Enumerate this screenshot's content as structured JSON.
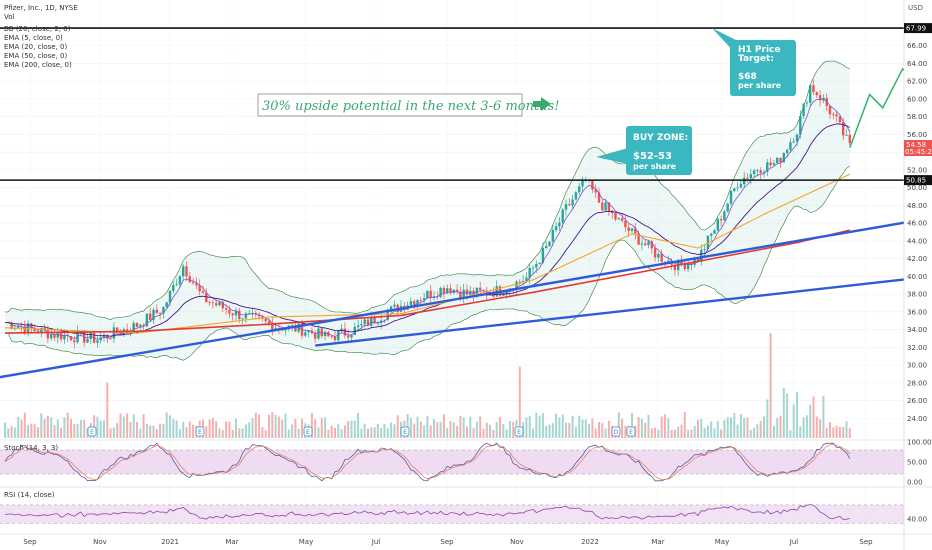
{
  "header": {
    "symbol": "Pfizer, Inc., 1D, NYSE",
    "volume": "Vol",
    "currency": "USD"
  },
  "indicators": [
    "BB (20, close, 2, 0)",
    "EMA (5, close, 0)",
    "EMA (20, close, 0)",
    "EMA (50, close, 0)",
    "EMA (200, close, 0)"
  ],
  "annotations": {
    "headline": "30% upside potential in the next 3-6 months!",
    "target_title_1": "H1 Price",
    "target_title_2": "Target:",
    "target_value": "$68",
    "target_unit": "per share",
    "buy_title": "BUY ZONE:",
    "buy_value": "$52-53",
    "buy_unit": "per share"
  },
  "colors": {
    "up": "#26a69a",
    "down": "#ef5350",
    "ema5": "#7e57c2",
    "ema20": "#4a148c",
    "ema50": "#f5a623",
    "ema200": "#e53935",
    "trendline": "#2f5bd9",
    "callout": "#3ab7bf",
    "projection": "#2eb36b",
    "stoch_k": "#5b5b9e",
    "stoch_d": "#e07a5f",
    "rsi": "#8e44ad",
    "band_fill": "#e1bee7"
  },
  "chart_data": {
    "type": "candlestick",
    "title": "Pfizer, Inc., 1D, NYSE",
    "ylim": [
      22,
      70
    ],
    "y_ticks": [
      24,
      26,
      28,
      30,
      32,
      34,
      36,
      38,
      40,
      42,
      44,
      46,
      48,
      50,
      52,
      54,
      56,
      58,
      60,
      62,
      64,
      66,
      68
    ],
    "x_ticks": [
      "Sep",
      "Nov",
      "2021",
      "Mar",
      "May",
      "Jul",
      "Sep",
      "Nov",
      "2022",
      "Mar",
      "May",
      "Jul",
      "Sep"
    ],
    "horizontal_levels": [
      {
        "value": 67.99,
        "label": "67.99"
      },
      {
        "value": 50.85,
        "label": "50.85"
      }
    ],
    "last_price": {
      "value": 54.58,
      "label": "54.58",
      "countdown": "05:45:21"
    },
    "price_path": [
      {
        "t": 0,
        "v": 34.8
      },
      {
        "t": 14,
        "v": 33.5
      },
      {
        "t": 28,
        "v": 32.9
      },
      {
        "t": 40,
        "v": 34.5
      },
      {
        "t": 48,
        "v": 36.4
      },
      {
        "t": 54,
        "v": 41.2
      },
      {
        "t": 60,
        "v": 37.5
      },
      {
        "t": 70,
        "v": 35.8
      },
      {
        "t": 82,
        "v": 34.4
      },
      {
        "t": 90,
        "v": 34.0
      },
      {
        "t": 98,
        "v": 33.1
      },
      {
        "t": 106,
        "v": 34.0
      },
      {
        "t": 114,
        "v": 35.6
      },
      {
        "t": 124,
        "v": 37.4
      },
      {
        "t": 134,
        "v": 38.8
      },
      {
        "t": 140,
        "v": 38.0
      },
      {
        "t": 150,
        "v": 38.4
      },
      {
        "t": 158,
        "v": 39.8
      },
      {
        "t": 164,
        "v": 43.2
      },
      {
        "t": 170,
        "v": 47.6
      },
      {
        "t": 176,
        "v": 50.8
      },
      {
        "t": 180,
        "v": 48.4
      },
      {
        "t": 186,
        "v": 46.2
      },
      {
        "t": 192,
        "v": 44.2
      },
      {
        "t": 198,
        "v": 42.3
      },
      {
        "t": 204,
        "v": 41.2
      },
      {
        "t": 210,
        "v": 42.0
      },
      {
        "t": 216,
        "v": 46.0
      },
      {
        "t": 222,
        "v": 50.6
      },
      {
        "t": 228,
        "v": 52.2
      },
      {
        "t": 234,
        "v": 52.8
      },
      {
        "t": 240,
        "v": 56.5
      },
      {
        "t": 244,
        "v": 61.5
      },
      {
        "t": 248,
        "v": 59.8
      },
      {
        "t": 252,
        "v": 57.5
      },
      {
        "t": 256,
        "v": 54.6
      }
    ],
    "ema_series": [
      {
        "name": "EMA (50, close, 0)",
        "points": [
          [
            0,
            34.2
          ],
          [
            40,
            33.6
          ],
          [
            80,
            35.4
          ],
          [
            120,
            35.8
          ],
          [
            160,
            39.6
          ],
          [
            190,
            44.8
          ],
          [
            210,
            43.2
          ],
          [
            230,
            47.0
          ],
          [
            256,
            51.5
          ]
        ]
      },
      {
        "name": "EMA (200, close, 0)",
        "points": [
          [
            0,
            33.6
          ],
          [
            40,
            33.8
          ],
          [
            80,
            34.6
          ],
          [
            120,
            35.6
          ],
          [
            160,
            38.2
          ],
          [
            200,
            41.0
          ],
          [
            220,
            42.4
          ],
          [
            240,
            43.8
          ],
          [
            256,
            45.2
          ]
        ]
      }
    ],
    "projection_path": [
      [
        256,
        54.5
      ],
      [
        262,
        60.5
      ],
      [
        266,
        59.0
      ],
      [
        272,
        63.4
      ],
      [
        276,
        62.0
      ],
      [
        284,
        68.0
      ]
    ],
    "trendlines": [
      {
        "from": [
          -10,
          28.1
        ],
        "to": [
          396,
          53.9
        ]
      },
      {
        "from": [
          94,
          32.2
        ],
        "to": [
          396,
          44.8
        ]
      }
    ],
    "stoch": {
      "label": "Stoch (14, 3, 3)",
      "ylim": [
        0,
        100
      ],
      "ticks": [
        0,
        50,
        100
      ],
      "tick_labels": [
        "0.00",
        "50.00",
        "100.00"
      ],
      "bands": [
        20,
        80
      ]
    },
    "rsi": {
      "label": "RSI (14, close)",
      "ylim": [
        20,
        85
      ],
      "ticks": [
        40
      ],
      "tick_labels": [
        "40.00"
      ],
      "bands": [
        30,
        70
      ]
    }
  }
}
